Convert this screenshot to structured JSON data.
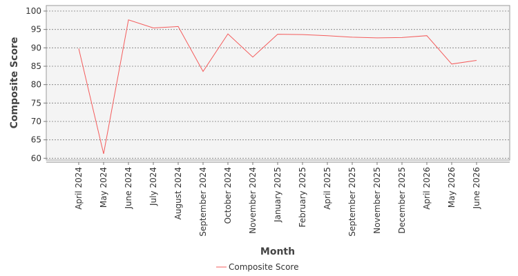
{
  "chart_data": {
    "type": "line",
    "title": "",
    "xlabel": "Month",
    "ylabel": "Composite Score",
    "categories": [
      "April 2024",
      "May 2024",
      "June 2024",
      "July 2024",
      "August 2024",
      "September 2024",
      "October 2024",
      "November 2024",
      "January 2025",
      "February 2025",
      "April 2025",
      "September 2025",
      "November 2025",
      "December 2025",
      "April 2026",
      "May 2026",
      "June 2026"
    ],
    "series": [
      {
        "name": "Composite Score",
        "color": "#f45b5b",
        "values": [
          89.8,
          61.2,
          97.6,
          95.4,
          95.8,
          83.6,
          93.8,
          87.5,
          93.7,
          93.6,
          93.3,
          92.9,
          92.7,
          92.8,
          93.3,
          85.6,
          86.6
        ]
      }
    ],
    "ylim": [
      59.5,
      101.5
    ],
    "yticks": [
      60,
      65,
      70,
      75,
      80,
      85,
      90,
      95,
      100
    ],
    "grid": true,
    "legend_position": "bottom-center"
  }
}
